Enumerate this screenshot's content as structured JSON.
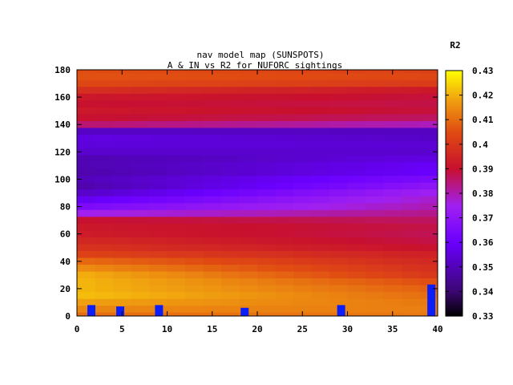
{
  "chart_data": {
    "type": "heatmap",
    "title_lines": [
      "nav model map (SUNSPOTS)",
      "A & IN vs R2 for NUFORC sightings"
    ],
    "xlabel": "",
    "ylabel": "",
    "colorbar_label": "R2",
    "xlim": [
      0,
      40
    ],
    "ylim": [
      0,
      180
    ],
    "xticks": [
      0,
      5,
      10,
      15,
      20,
      25,
      30,
      35,
      40
    ],
    "yticks": [
      0,
      20,
      40,
      60,
      80,
      100,
      120,
      140,
      160,
      180
    ],
    "colorbar_range": [
      0.33,
      0.43
    ],
    "colorbar_ticks": [
      "0.43",
      "0.42",
      "0.41",
      "0.4",
      "0.39",
      "0.38",
      "0.37",
      "0.36",
      "0.35",
      "0.34",
      "0.33"
    ],
    "y_rows": [
      180,
      175,
      170,
      165,
      160,
      155,
      150,
      145,
      140,
      135,
      130,
      125,
      120,
      115,
      110,
      105,
      100,
      95,
      90,
      85,
      80,
      75,
      70,
      65,
      60,
      55,
      50,
      45,
      40,
      35,
      30,
      25,
      20,
      15,
      10,
      5,
      0
    ],
    "profile_left": [
      0.405,
      0.406,
      0.404,
      0.398,
      0.392,
      0.39,
      0.392,
      0.39,
      0.385,
      0.352,
      0.356,
      0.355,
      0.353,
      0.349,
      0.349,
      0.348,
      0.35,
      0.348,
      0.352,
      0.358,
      0.365,
      0.375,
      0.39,
      0.392,
      0.393,
      0.396,
      0.399,
      0.403,
      0.41,
      0.415,
      0.42,
      0.421,
      0.421,
      0.422,
      0.418,
      0.414,
      0.41
    ],
    "profile_right": [
      0.402,
      0.404,
      0.401,
      0.392,
      0.389,
      0.388,
      0.389,
      0.386,
      0.379,
      0.351,
      0.352,
      0.354,
      0.353,
      0.356,
      0.359,
      0.36,
      0.365,
      0.37,
      0.375,
      0.378,
      0.38,
      0.383,
      0.386,
      0.388,
      0.387,
      0.388,
      0.39,
      0.394,
      0.396,
      0.398,
      0.4,
      0.405,
      0.408,
      0.41,
      0.412,
      0.413,
      0.412
    ],
    "markers": [
      {
        "x": 1.6,
        "y": 0,
        "height": 8
      },
      {
        "x": 4.8,
        "y": 0,
        "height": 7
      },
      {
        "x": 9.1,
        "y": 0,
        "height": 8
      },
      {
        "x": 18.6,
        "y": 0,
        "height": 6
      },
      {
        "x": 29.3,
        "y": 0,
        "height": 8
      },
      {
        "x": 39.3,
        "y": 0,
        "height": 23
      }
    ],
    "marker_color": "#0c1ef8",
    "colormap": [
      [
        0.0,
        "#000000"
      ],
      [
        0.1,
        "#3b0772"
      ],
      [
        0.3,
        "#6a00ff"
      ],
      [
        0.45,
        "#a020f0"
      ],
      [
        0.6,
        "#c8102e"
      ],
      [
        0.75,
        "#e04b12"
      ],
      [
        0.88,
        "#f0a010"
      ],
      [
        1.0,
        "#ffff00"
      ]
    ]
  }
}
